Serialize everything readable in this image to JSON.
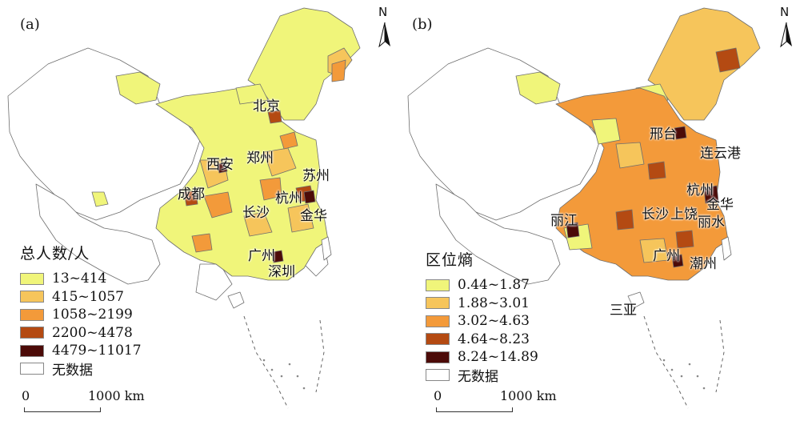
{
  "panels": [
    {
      "label": "(a)",
      "legend_title": "总人数/人",
      "classes": [
        {
          "label": "13~414",
          "color": "#f0f57a"
        },
        {
          "label": "415~1057",
          "color": "#f6c55b"
        },
        {
          "label": "1058~2199",
          "color": "#f39a3a"
        },
        {
          "label": "2200~4478",
          "color": "#b44a12"
        },
        {
          "label": "4479~11017",
          "color": "#4c0b08"
        }
      ],
      "no_data": {
        "label": "无数据",
        "color": "#ffffff"
      },
      "scale": {
        "start": "0",
        "end": "1000 km"
      },
      "north": "N",
      "cities": [
        "北京",
        "西安",
        "郑州",
        "苏州",
        "成都",
        "杭州",
        "长沙",
        "金华",
        "广州",
        "深圳"
      ]
    },
    {
      "label": "(b)",
      "legend_title": "区位熵",
      "classes": [
        {
          "label": "0.44~1.87",
          "color": "#f0f57a"
        },
        {
          "label": "1.88~3.01",
          "color": "#f6c55b"
        },
        {
          "label": "3.02~4.63",
          "color": "#f39a3a"
        },
        {
          "label": "4.64~8.23",
          "color": "#b44a12"
        },
        {
          "label": "8.24~14.89",
          "color": "#4c0b08"
        }
      ],
      "no_data": {
        "label": "无数据",
        "color": "#ffffff"
      },
      "scale": {
        "start": "0",
        "end": "1000 km"
      },
      "north": "N",
      "cities": [
        "邢台",
        "连云港",
        "杭州",
        "金华",
        "丽江",
        "长沙",
        "上饶",
        "丽水",
        "广州",
        "潮州",
        "三亚"
      ]
    }
  ]
}
